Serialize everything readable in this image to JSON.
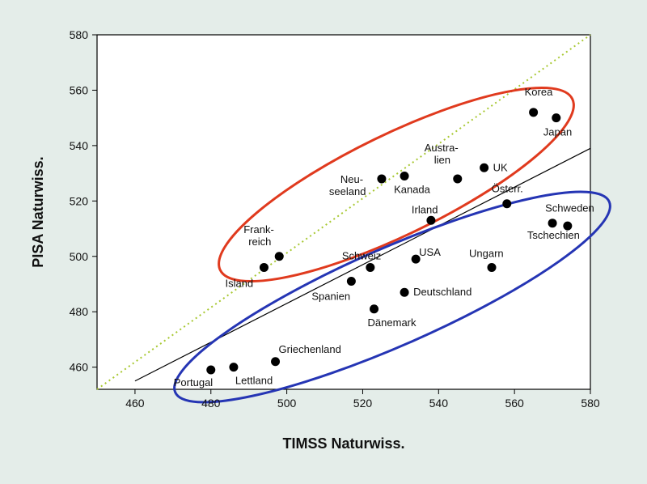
{
  "chart_data": {
    "type": "scatter",
    "xlabel": "TIMSS Naturwiss.",
    "ylabel": "PISA Naturwiss.",
    "xlim": [
      450,
      580
    ],
    "ylim": [
      452,
      580
    ],
    "xticks": [
      460,
      480,
      500,
      520,
      540,
      560,
      580
    ],
    "yticks": [
      460,
      480,
      500,
      520,
      540,
      560,
      580
    ],
    "grid": false,
    "colors": {
      "background": "#e4ede9",
      "plot_background": "#ffffff",
      "points": "#000000",
      "regression_line": "#000000",
      "diagonal_line": "#a8c832",
      "upper_cluster": "#e03a1e",
      "lower_cluster": "#2535b4"
    },
    "points": [
      {
        "label": "Korea",
        "x": 565,
        "y": 552
      },
      {
        "label": "Japan",
        "x": 571,
        "y": 550
      },
      {
        "label": "UK",
        "x": 552,
        "y": 532
      },
      {
        "label": "Austra-",
        "label2": "lien",
        "x": 545,
        "y": 528
      },
      {
        "label": "Kanada",
        "x": 531,
        "y": 529
      },
      {
        "label": "Neu-",
        "label2": "seeland",
        "x": 525,
        "y": 528
      },
      {
        "label": "Österr.",
        "x": 558,
        "y": 519
      },
      {
        "label": "Irland",
        "x": 538,
        "y": 513
      },
      {
        "label": "Schweden",
        "x": 570,
        "y": 512
      },
      {
        "label": "Tschechien",
        "x": 574,
        "y": 511
      },
      {
        "label": "Frank-",
        "label2": "reich",
        "x": 498,
        "y": 500
      },
      {
        "label": "Island",
        "x": 494,
        "y": 496
      },
      {
        "label": "USA",
        "x": 534,
        "y": 499
      },
      {
        "label": "Schweiz",
        "x": 522,
        "y": 496
      },
      {
        "label": "Ungarn",
        "x": 554,
        "y": 496
      },
      {
        "label": "Spanien",
        "x": 517,
        "y": 491
      },
      {
        "label": "Deutschland",
        "x": 531,
        "y": 487
      },
      {
        "label": "Dänemark",
        "x": 523,
        "y": 481
      },
      {
        "label": "Griechenland",
        "x": 497,
        "y": 462
      },
      {
        "label": "Lettland",
        "x": 486,
        "y": 460
      },
      {
        "label": "Portugal",
        "x": 480,
        "y": 459
      }
    ],
    "lines": [
      {
        "name": "regression",
        "from": [
          460,
          455
        ],
        "to": [
          580,
          539
        ]
      },
      {
        "name": "diagonal",
        "style": "dotted",
        "from": [
          450,
          452
        ],
        "to": [
          580,
          580
        ]
      }
    ],
    "clusters": [
      {
        "name": "upper",
        "color": "#e03a1e"
      },
      {
        "name": "lower",
        "color": "#2535b4"
      }
    ]
  }
}
